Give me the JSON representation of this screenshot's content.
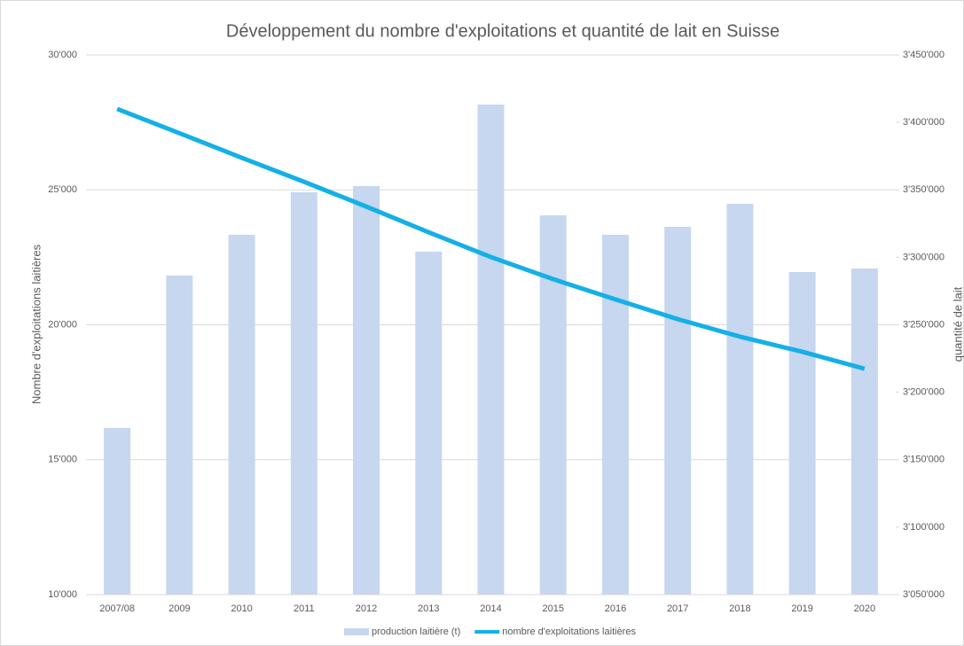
{
  "chart_data": {
    "type": "combo",
    "title": "Développement du nombre d'exploitations et quantité de lait en Suisse",
    "y_label": "Nombre d'exploitations laitières",
    "y2_label": "quantité de lait",
    "categories": [
      "2007/08",
      "2009",
      "2010",
      "2011",
      "2012",
      "2013",
      "2014",
      "2015",
      "2016",
      "2017",
      "2018",
      "2019",
      "2020"
    ],
    "series": [
      {
        "name": "production laitière (t)",
        "type": "bar",
        "axis": "y2",
        "color": "#c6d7ef",
        "values": [
          3173500,
          3286500,
          3316700,
          3348200,
          3352800,
          3304200,
          3413200,
          3331100,
          3316700,
          3322600,
          3339700,
          3289100,
          3291700
        ]
      },
      {
        "name": "nombre d'exploitations laitières",
        "type": "line",
        "color": "#14b0e6",
        "values": [
          28000,
          27100,
          26190,
          25300,
          24380,
          23430,
          22510,
          21690,
          20940,
          20210,
          19560,
          19000,
          18370
        ]
      }
    ],
    "ylim": [
      10000,
      30000
    ],
    "yticks": [
      {
        "value": 10000,
        "label": "10'000"
      },
      {
        "value": 15000,
        "label": "15'000"
      },
      {
        "value": 20000,
        "label": "20'000"
      },
      {
        "value": 25000,
        "label": "25'000"
      },
      {
        "value": 30000,
        "label": "30'000"
      }
    ],
    "y2lim": [
      3050000,
      3450000
    ],
    "y2ticks": [
      {
        "value": 3050000,
        "label": "3'050'000"
      },
      {
        "value": 3100000,
        "label": "3'100'000"
      },
      {
        "value": 3150000,
        "label": "3'150'000"
      },
      {
        "value": 3200000,
        "label": "3'200'000"
      },
      {
        "value": 3250000,
        "label": "3'250'000"
      },
      {
        "value": 3300000,
        "label": "3'300'000"
      },
      {
        "value": 3350000,
        "label": "3'350'000"
      },
      {
        "value": 3400000,
        "label": "3'400'000"
      },
      {
        "value": 3450000,
        "label": "3'450'000"
      }
    ],
    "grid": true,
    "legend": "bottom"
  }
}
